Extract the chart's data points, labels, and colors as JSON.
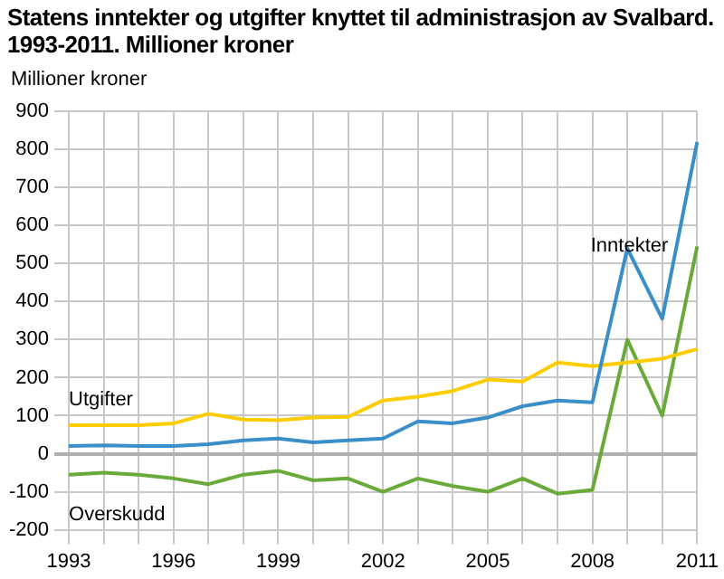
{
  "chart_data": {
    "type": "line",
    "title": "Statens inntekter og utgifter knyttet til administrasjon av Svalbard. 1993-2011. Millioner kroner",
    "ylabel": "Millioner kroner",
    "categories": [
      "1993",
      null,
      null,
      "1996",
      null,
      null,
      "1999",
      null,
      null,
      "2002",
      null,
      null,
      "2005",
      null,
      null,
      "2008",
      null,
      null,
      "2011"
    ],
    "series": [
      {
        "name": "Inntekter",
        "color": "#3a8fc8",
        "values": [
          20,
          22,
          20,
          20,
          25,
          35,
          40,
          30,
          35,
          40,
          85,
          80,
          95,
          125,
          140,
          135,
          540,
          355,
          820
        ]
      },
      {
        "name": "Utgifter",
        "color": "#ffcc00",
        "values": [
          75,
          75,
          75,
          80,
          105,
          90,
          88,
          95,
          97,
          140,
          150,
          165,
          195,
          190,
          240,
          230,
          240,
          250,
          275
        ]
      },
      {
        "name": "Overskudd",
        "color": "#6aaa3a",
        "values": [
          -55,
          -50,
          -55,
          -65,
          -80,
          -55,
          -45,
          -70,
          -65,
          -100,
          -65,
          -85,
          -100,
          -65,
          -105,
          -95,
          300,
          100,
          545
        ]
      }
    ],
    "ylim": [
      -200,
      900
    ],
    "yticks": [
      -200,
      -100,
      0,
      100,
      200,
      300,
      400,
      500,
      600,
      700,
      800,
      900
    ],
    "grid": true,
    "legend": false,
    "marker": "none",
    "line_style": "solid"
  }
}
